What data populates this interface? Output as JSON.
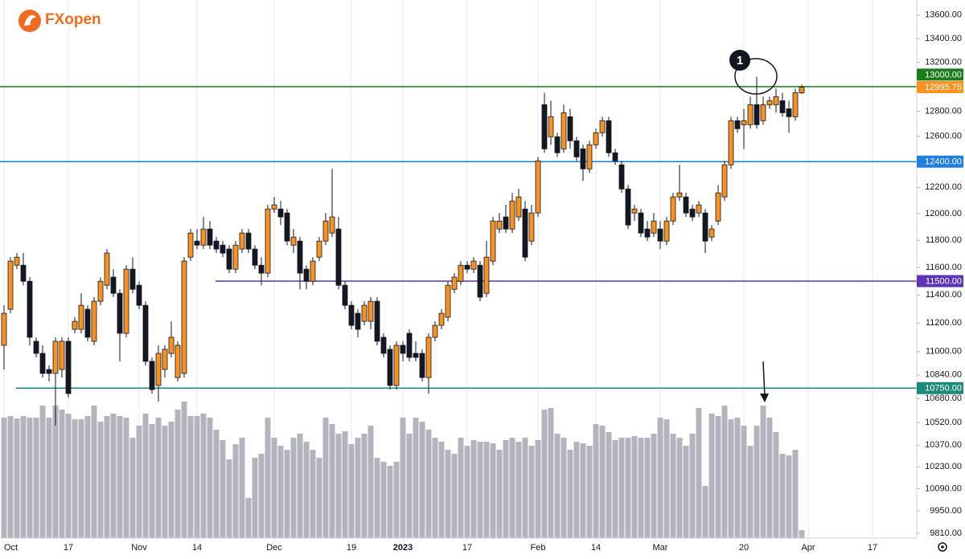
{
  "chart_data": {
    "type": "candlestick",
    "logo": "FXopen",
    "annotation": "1",
    "log_scale": true,
    "grid": "x",
    "up_color": "#f7931e",
    "down_color": "#131722",
    "volume_color": "#b2b5be",
    "ylim": [
      9780,
      13730
    ],
    "volume_ylim": [
      0,
      170
    ],
    "yticks": [
      {
        "value": 13600,
        "label": "13600.00"
      },
      {
        "value": 13400,
        "label": "13400.00"
      },
      {
        "value": 13200,
        "label": "13200.00"
      },
      {
        "value": 12800,
        "label": "12800.00"
      },
      {
        "value": 12600,
        "label": "12600.00"
      },
      {
        "value": 12200,
        "label": "12200.00"
      },
      {
        "value": 12000,
        "label": "12000.00"
      },
      {
        "value": 11800,
        "label": "11800.00"
      },
      {
        "value": 11600,
        "label": "11600.00"
      },
      {
        "value": 11400,
        "label": "11400.00"
      },
      {
        "value": 11200,
        "label": "11200.00"
      },
      {
        "value": 11000,
        "label": "11000.00"
      },
      {
        "value": 10840,
        "label": "10840.00"
      },
      {
        "value": 10680,
        "label": "10680.00"
      },
      {
        "value": 10520,
        "label": "10520.00"
      },
      {
        "value": 10370,
        "label": "10370.00"
      },
      {
        "value": 10230,
        "label": "10230.00"
      },
      {
        "value": 10090,
        "label": "10090.00"
      },
      {
        "value": 9950,
        "label": "9950.00"
      },
      {
        "value": 9810,
        "label": "9810.00"
      }
    ],
    "levels": [
      {
        "value": 13000,
        "label": "13000.00",
        "color": "#1b7d1b"
      },
      {
        "value": 12400,
        "label": "12400.00",
        "color": "#1e7fe0"
      },
      {
        "value": 11500,
        "label": "11500.00",
        "color": "#5b35b5"
      },
      {
        "value": 10750,
        "label": "10750.00",
        "color": "#1c8a78"
      }
    ],
    "categories": [
      "Oct",
      null,
      null,
      null,
      null,
      null,
      null,
      null,
      null,
      null,
      "17",
      null,
      null,
      null,
      null,
      null,
      null,
      null,
      null,
      null,
      null,
      "Nov",
      null,
      null,
      null,
      null,
      null,
      null,
      null,
      null,
      "14",
      null,
      null,
      null,
      null,
      null,
      null,
      null,
      null,
      null,
      null,
      null,
      "Dec",
      null,
      null,
      null,
      null,
      null,
      null,
      null,
      null,
      null,
      null,
      null,
      "19",
      null,
      null,
      null,
      null,
      null,
      null,
      null,
      "2023",
      null,
      null,
      null,
      null,
      null,
      null,
      null,
      null,
      null,
      "17",
      null,
      null,
      null,
      null,
      null,
      null,
      null,
      null,
      null,
      null,
      "Feb",
      null,
      null,
      null,
      null,
      null,
      null,
      null,
      null,
      "14",
      null,
      null,
      null,
      null,
      null,
      null,
      null,
      null,
      null,
      "Mar",
      null,
      null,
      null,
      null,
      null,
      null,
      null,
      null,
      null,
      null,
      null,
      null,
      "20",
      null,
      null,
      null,
      null,
      null,
      null,
      null,
      null,
      null,
      "Apr",
      null,
      null,
      null,
      null,
      null,
      null,
      null,
      null,
      null,
      "17",
      null
    ],
    "open": [
      11044,
      11298,
      11616,
      11616,
      11499,
      11072,
      10988,
      10877,
      10850,
      10877,
      11072,
      11156,
      11156,
      11298,
      11072,
      11355,
      11470,
      11529,
      11412,
      11128,
      11587,
      11470,
      11326,
      10933,
      10768,
      10877,
      10988,
      10822,
      10850,
      11675,
      11794,
      11764,
      11884,
      11794,
      11764,
      11735,
      11587,
      11735,
      11854,
      11735,
      11616,
      11558,
      12035,
      12035,
      12005,
      11764,
      11794,
      11587,
      11499,
      11675,
      11794,
      11854,
      11884,
      11470,
      11326,
      11269,
      11212,
      11212,
      11355,
      11100,
      11016,
      10768,
      11044,
      11128,
      10988,
      10988,
      10822,
      11100,
      11184,
      11241,
      11441,
      11499,
      11616,
      11587,
      11616,
      11412,
      11646,
      11884,
      11975,
      11884,
      11975,
      12035,
      11794,
      12005,
      12853,
      12596,
      12596,
      12500,
      12756,
      12564,
      12500,
      12343,
      12532,
      12628,
      12724,
      12469,
      12375,
      12188,
      12005,
      12005,
      11884,
      11854,
      11884,
      11794,
      11944,
      12127,
      12127,
      12035,
      12005,
      12005,
      11824,
      11944,
      12127,
      12375,
      12724,
      12692,
      12692,
      12853,
      12724,
      12853,
      12853,
      12885,
      12820,
      12756,
      12950,
      null,
      null,
      null,
      null,
      null,
      null,
      null,
      null,
      null,
      null,
      null,
      null
    ],
    "high": [
      11326,
      11675,
      11705,
      11705,
      11529,
      11100,
      11044,
      10905,
      11100,
      11100,
      11100,
      11241,
      11412,
      11326,
      11384,
      11529,
      11735,
      11587,
      11441,
      11616,
      11675,
      11499,
      11355,
      10960,
      11044,
      11044,
      11212,
      11072,
      11675,
      11884,
      11884,
      11975,
      11944,
      11824,
      11794,
      11764,
      11794,
      11884,
      11884,
      11764,
      11675,
      12066,
      12127,
      12096,
      12035,
      11884,
      11824,
      11616,
      11675,
      11824,
      12005,
      12343,
      11975,
      11499,
      11355,
      11298,
      11355,
      11384,
      11384,
      11128,
      11044,
      11072,
      11072,
      11156,
      11072,
      11016,
      11128,
      11212,
      11298,
      11499,
      11558,
      11646,
      11646,
      11675,
      11646,
      11794,
      11975,
      12005,
      12066,
      12158,
      12188,
      12096,
      12066,
      12437,
      12950,
      12885,
      12628,
      12853,
      12820,
      12596,
      12532,
      12564,
      12660,
      12756,
      12756,
      12500,
      12406,
      12219,
      12066,
      12035,
      11944,
      12005,
      11944,
      11975,
      12158,
      12375,
      12158,
      12066,
      12096,
      12035,
      11914,
      12219,
      12406,
      12756,
      12756,
      12820,
      12918,
      13081,
      12918,
      12918,
      12983,
      12950,
      12885,
      12983,
      13016,
      null,
      null,
      null,
      null,
      null,
      null,
      null,
      null,
      null,
      null,
      null,
      null
    ],
    "low": [
      10877,
      11269,
      11587,
      11470,
      11044,
      10960,
      10822,
      10795,
      10500,
      10822,
      10686,
      11128,
      11128,
      11072,
      11044,
      11326,
      11441,
      11384,
      10933,
      11100,
      11412,
      11298,
      10905,
      10713,
      10659,
      10822,
      10960,
      10795,
      10822,
      11646,
      11735,
      11735,
      11735,
      11705,
      11675,
      11558,
      11558,
      11705,
      11705,
      11587,
      11470,
      11529,
      12005,
      11914,
      11764,
      11705,
      11441,
      11441,
      11470,
      11646,
      11764,
      11824,
      11441,
      11298,
      11156,
      11100,
      11184,
      11156,
      11044,
      10960,
      10740,
      10740,
      10933,
      10933,
      10933,
      10795,
      10713,
      11072,
      11156,
      11212,
      11412,
      11470,
      11558,
      11558,
      11355,
      11384,
      11616,
      11854,
      11854,
      11854,
      11944,
      11646,
      11764,
      11975,
      12469,
      12532,
      12437,
      12469,
      12500,
      12406,
      12250,
      12312,
      12500,
      12596,
      12437,
      12375,
      12158,
      11884,
      11944,
      11824,
      11794,
      11824,
      11735,
      11764,
      11914,
      12096,
      11975,
      11944,
      11975,
      11705,
      11794,
      11914,
      12096,
      12343,
      12628,
      12500,
      12660,
      12660,
      12692,
      12820,
      12788,
      12756,
      12628,
      12724,
      12940,
      null,
      null,
      null,
      null,
      null,
      null,
      null,
      null,
      null,
      null,
      null,
      null
    ],
    "close": [
      11269,
      11646,
      11675,
      11499,
      11100,
      10988,
      10850,
      10850,
      11072,
      11072,
      10713,
      11212,
      11326,
      11100,
      11355,
      11499,
      11705,
      11412,
      11128,
      11587,
      11441,
      11326,
      10933,
      10740,
      10988,
      11016,
      11100,
      11044,
      11646,
      11854,
      11764,
      11884,
      11764,
      11735,
      11705,
      11587,
      11764,
      11854,
      11735,
      11616,
      11558,
      12035,
      12066,
      11975,
      11794,
      11824,
      11558,
      11499,
      11646,
      11794,
      11944,
      11975,
      11470,
      11326,
      11184,
      11156,
      11326,
      11355,
      11072,
      10988,
      10768,
      11044,
      10988,
      10960,
      10960,
      10822,
      11100,
      11184,
      11269,
      11470,
      11529,
      11616,
      11587,
      11646,
      11384,
      11675,
      11944,
      11944,
      11884,
      12096,
      12127,
      11675,
      12005,
      12406,
      12500,
      12756,
      12469,
      12788,
      12564,
      12437,
      12343,
      12532,
      12628,
      12724,
      12469,
      12406,
      12188,
      11914,
      12035,
      11854,
      11824,
      11944,
      11794,
      11944,
      12127,
      12158,
      12005,
      11975,
      12066,
      11794,
      11884,
      12158,
      12375,
      12724,
      12660,
      12724,
      12853,
      12692,
      12853,
      12885,
      12918,
      12788,
      12756,
      12950,
      12995.75,
      null,
      null,
      null,
      null,
      null,
      null,
      null,
      null,
      null,
      null,
      null,
      null
    ],
    "volume": [
      150,
      152,
      149,
      152,
      150,
      150,
      165,
      150,
      165,
      160,
      155,
      148,
      148,
      152,
      165,
      145,
      152,
      155,
      152,
      150,
      125,
      140,
      155,
      142,
      150,
      140,
      145,
      160,
      170,
      152,
      152,
      155,
      150,
      135,
      122,
      98,
      117,
      125,
      50,
      100,
      105,
      150,
      125,
      115,
      110,
      125,
      130,
      120,
      110,
      100,
      150,
      142,
      130,
      133,
      117,
      125,
      130,
      140,
      100,
      95,
      90,
      95,
      150,
      130,
      150,
      145,
      135,
      125,
      120,
      110,
      105,
      125,
      115,
      122,
      120,
      120,
      118,
      110,
      122,
      125,
      120,
      125,
      115,
      122,
      160,
      162,
      130,
      125,
      110,
      120,
      118,
      115,
      142,
      140,
      132,
      122,
      125,
      125,
      127,
      125,
      125,
      130,
      150,
      148,
      130,
      125,
      115,
      130,
      162,
      65,
      155,
      152,
      165,
      148,
      150,
      140,
      115,
      140,
      165,
      150,
      132,
      105,
      103,
      110,
      10,
      null,
      null,
      null,
      null,
      null,
      null,
      null,
      null,
      null,
      null,
      null,
      null
    ]
  }
}
